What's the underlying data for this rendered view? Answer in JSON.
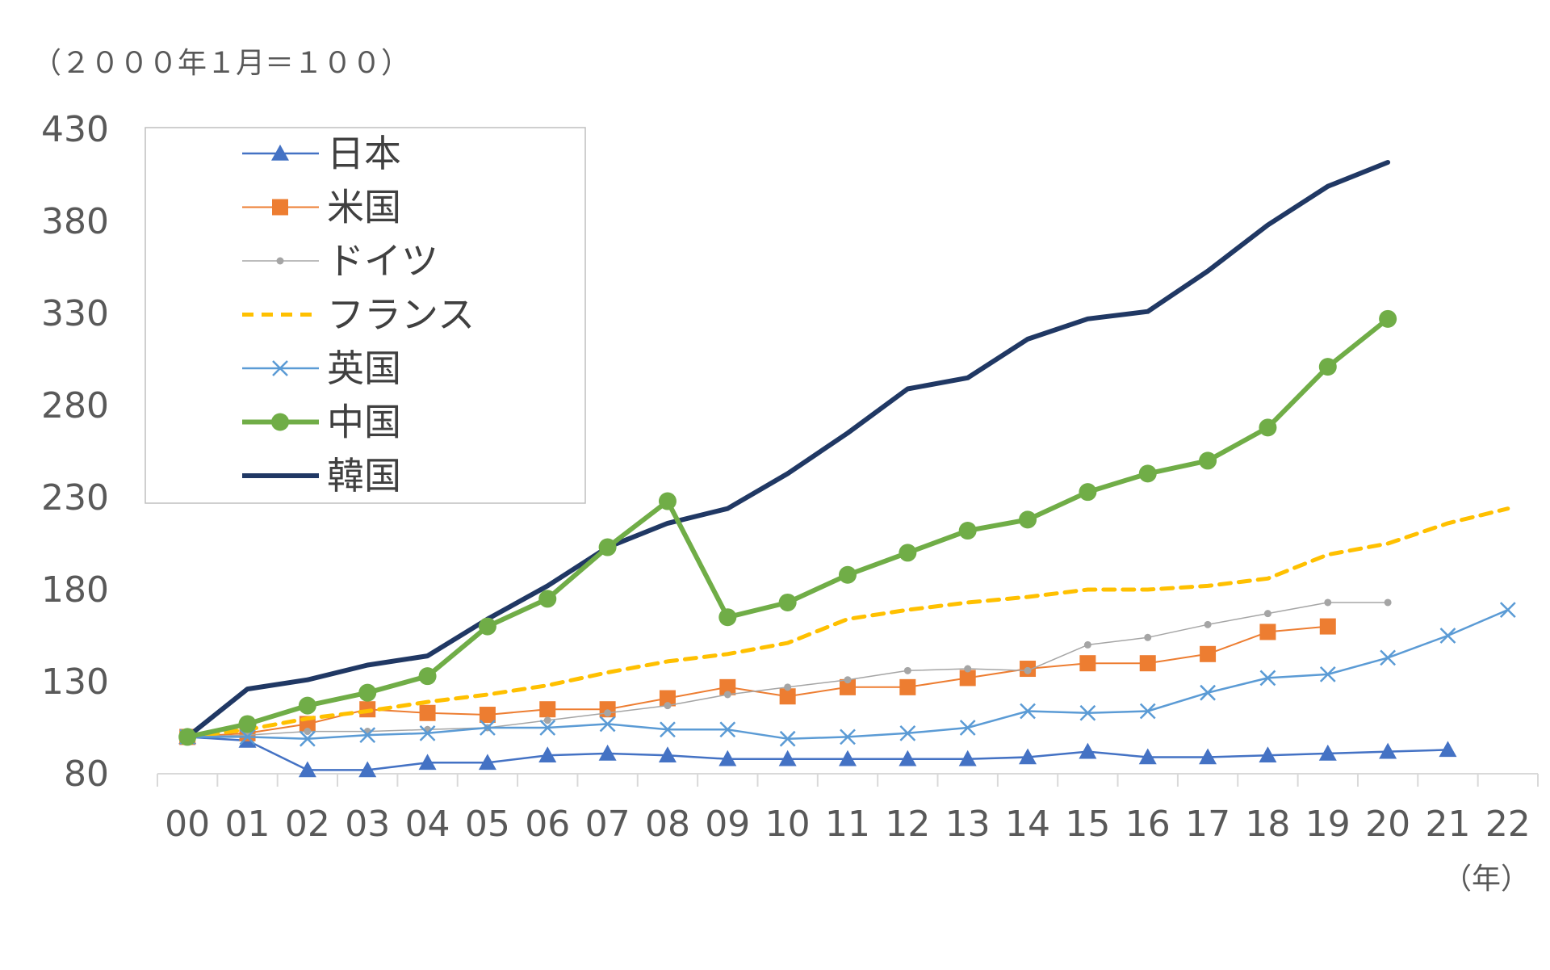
{
  "chart_data": {
    "type": "line",
    "y_unit_label": "（２０００年１月＝１００）",
    "x_unit_label": "（年）",
    "categories": [
      "00",
      "01",
      "02",
      "03",
      "04",
      "05",
      "06",
      "07",
      "08",
      "09",
      "10",
      "11",
      "12",
      "13",
      "14",
      "15",
      "16",
      "17",
      "18",
      "19",
      "20",
      "21",
      "22"
    ],
    "ylim": [
      80,
      430
    ],
    "yticks": [
      "430",
      "380",
      "330",
      "280",
      "230",
      "180",
      "130",
      "80"
    ],
    "ytick_values": [
      430,
      380,
      330,
      280,
      230,
      180,
      130,
      80
    ],
    "grid": false,
    "legend_position": "top-left",
    "series": [
      {
        "name": "日本",
        "color": "#4472C4",
        "marker": "triangle",
        "values": [
          100,
          98,
          82,
          82,
          86,
          86,
          90,
          91,
          90,
          88,
          88,
          88,
          88,
          88,
          89,
          92,
          89,
          89,
          90,
          91,
          92,
          93,
          null
        ]
      },
      {
        "name": "米国",
        "color": "#ED7D31",
        "marker": "square",
        "values": [
          100,
          102,
          107,
          115,
          113,
          112,
          115,
          115,
          121,
          127,
          122,
          127,
          127,
          132,
          137,
          140,
          140,
          145,
          157,
          160,
          null,
          null,
          null
        ]
      },
      {
        "name": "ドイツ",
        "color": "#A5A5A5",
        "marker": "dot",
        "values": [
          100,
          101,
          103,
          103,
          104,
          105,
          109,
          113,
          117,
          123,
          127,
          131,
          136,
          137,
          136,
          150,
          154,
          161,
          167,
          173,
          173,
          null,
          null
        ]
      },
      {
        "name": "フランス",
        "color": "#FFC000",
        "marker": "dash",
        "values": [
          100,
          104,
          110,
          114,
          119,
          123,
          128,
          135,
          141,
          145,
          151,
          164,
          169,
          173,
          176,
          180,
          180,
          182,
          186,
          199,
          205,
          216,
          224
        ]
      },
      {
        "name": "英国",
        "color": "#5B9BD5",
        "marker": "x",
        "values": [
          100,
          100,
          99,
          101,
          102,
          105,
          105,
          107,
          104,
          104,
          99,
          100,
          102,
          105,
          114,
          113,
          114,
          124,
          132,
          134,
          143,
          155,
          169
        ]
      },
      {
        "name": "中国",
        "color": "#70AD47",
        "marker": "circle",
        "values": [
          100,
          107,
          117,
          124,
          133,
          160,
          175,
          203,
          228,
          165,
          173,
          188,
          200,
          212,
          218,
          233,
          243,
          250,
          268,
          301,
          327,
          null,
          null
        ]
      },
      {
        "name": "韓国",
        "color": "#203864",
        "marker": "none",
        "values": [
          100,
          126,
          131,
          139,
          144,
          164,
          182,
          203,
          216,
          224,
          243,
          265,
          289,
          295,
          316,
          327,
          331,
          353,
          378,
          399,
          412,
          null,
          null
        ]
      }
    ]
  }
}
